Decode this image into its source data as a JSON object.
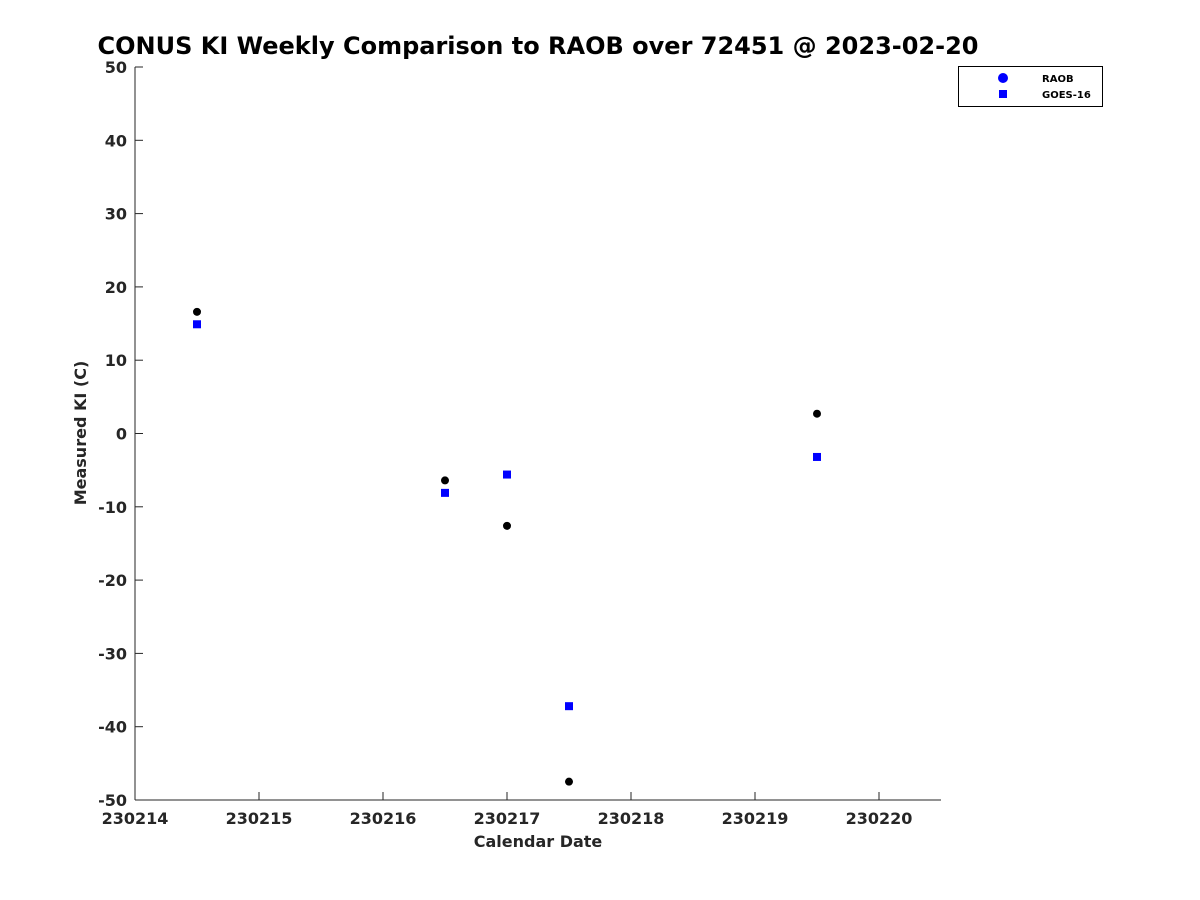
{
  "chart_data": {
    "type": "scatter",
    "title": "CONUS KI Weekly Comparison to RAOB over 72451 @ 2023-02-20",
    "xlabel": "Calendar Date",
    "ylabel": "Measured KI (C)",
    "xlim": [
      230214,
      230220.5
    ],
    "ylim": [
      -50,
      50
    ],
    "xticks": [
      230214,
      230215,
      230216,
      230217,
      230218,
      230219,
      230220
    ],
    "xtick_labels": [
      "230214",
      "230215",
      "230216",
      "230217",
      "230218",
      "230219",
      "230220"
    ],
    "yticks": [
      -50,
      -40,
      -30,
      -20,
      -10,
      0,
      10,
      20,
      30,
      40,
      50
    ],
    "ytick_labels": [
      "-50",
      "-40",
      "-30",
      "-20",
      "-10",
      "0",
      "10",
      "20",
      "30",
      "40",
      "50"
    ],
    "grid": false,
    "legend_position": "top-right",
    "series": [
      {
        "name": "RAOB",
        "marker": "circle",
        "color": "#000000",
        "legend_color": "#0000ff",
        "x": [
          230214.5,
          230216.5,
          230217.0,
          230217.5,
          230219.5
        ],
        "y": [
          16.6,
          -6.4,
          -12.6,
          -47.5,
          2.7
        ]
      },
      {
        "name": "GOES-16",
        "marker": "square",
        "color": "#0000ff",
        "legend_color": "#0000ff",
        "x": [
          230214.5,
          230216.5,
          230217.0,
          230217.5,
          230219.5
        ],
        "y": [
          14.9,
          -8.1,
          -5.6,
          -37.2,
          -3.2
        ]
      }
    ]
  }
}
